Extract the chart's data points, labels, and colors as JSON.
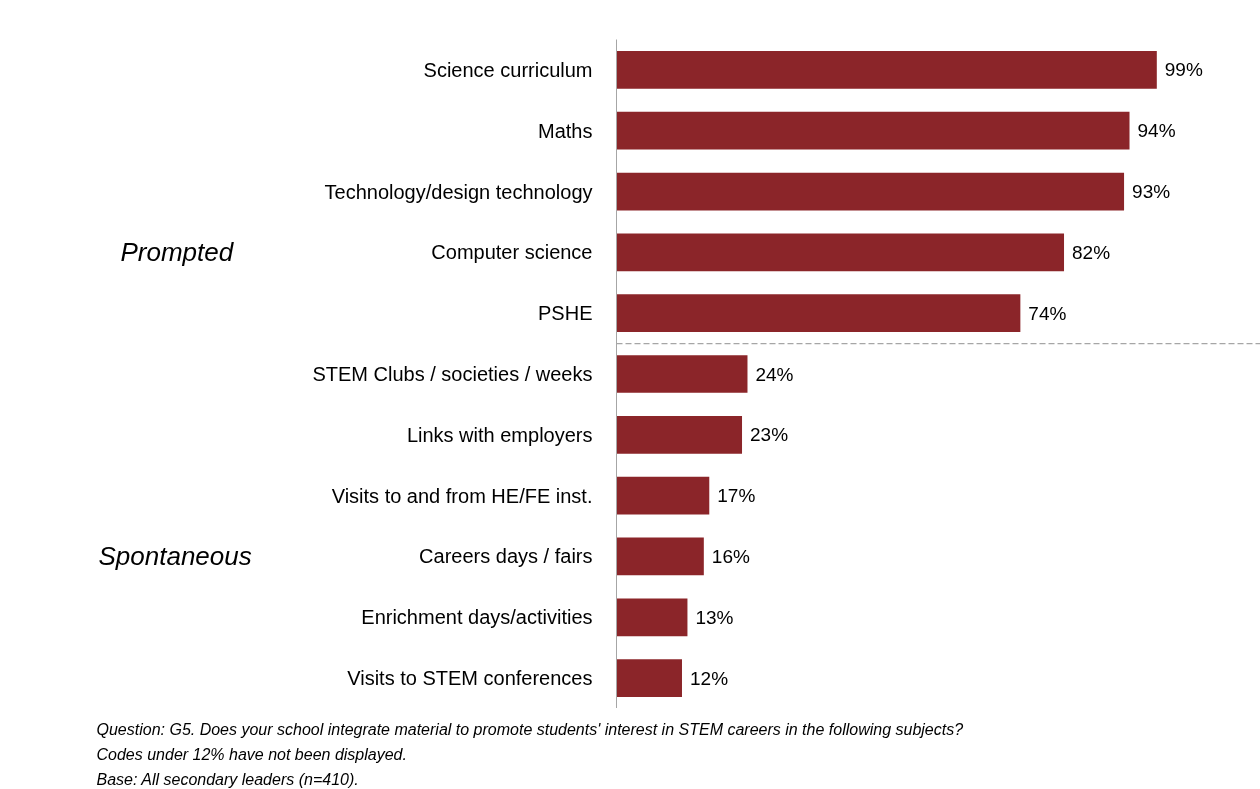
{
  "chart_data": {
    "type": "bar",
    "orientation": "horizontal",
    "categories": [
      "Science curriculum",
      "Maths",
      "Technology/design technology",
      "Computer science",
      "PSHE",
      "STEM Clubs / societies / weeks",
      "Links with employers",
      "Visits to and from HE/FE inst.",
      "Careers days / fairs",
      "Enrichment days/activities",
      "Visits to STEM conferences"
    ],
    "values": [
      99,
      94,
      93,
      82,
      74,
      24,
      23,
      17,
      16,
      13,
      12
    ],
    "value_labels": [
      "99%",
      "94%",
      "93%",
      "82%",
      "74%",
      "24%",
      "23%",
      "17%",
      "16%",
      "13%",
      "12%"
    ],
    "color": "#8b2529",
    "xlim": [
      0,
      118
    ],
    "tick_labels": "y",
    "grid": false,
    "annotations": [
      "Prompted",
      "Spontaneous",
      "Question: G5. Does your school integrate material to promote students' interest in STEM careers in the following subjects?",
      "Codes under 12% have not been displayed.",
      "Base: All secondary leaders (n=410)."
    ]
  }
}
